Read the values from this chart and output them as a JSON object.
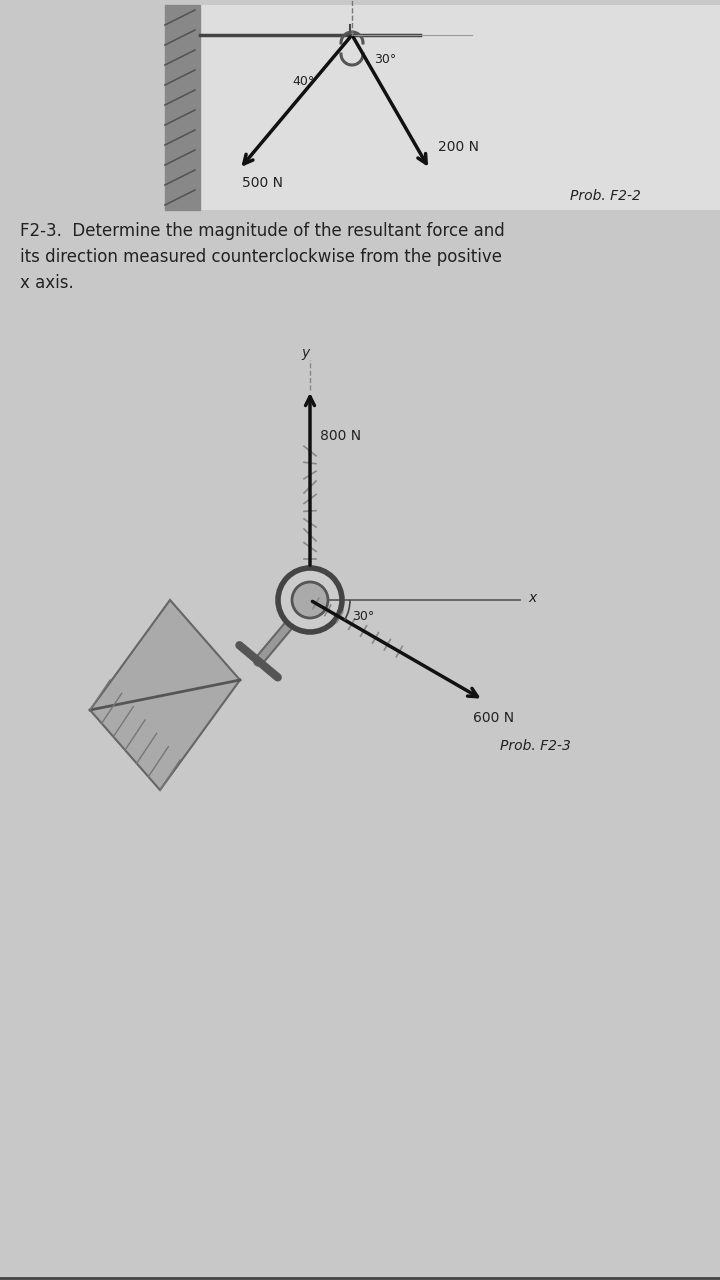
{
  "bg_color": "#c8c8c8",
  "page_bg": "#d4d4d4",
  "diagram_bg": "#e0e0e0",
  "text_color": "#1a1a1a",
  "line_color": "#222222",
  "wall_color": "#888888",
  "font_size_body": 12,
  "font_size_label": 10,
  "font_size_prob": 10,
  "prob_f2_2_label": "Prob. F2-2",
  "prob_f2_3_label": "Prob. F2-3",
  "problem_text_line1": "F2-3.  Determine the magnitude of the resultant force and",
  "problem_text_line2": "its direction measured counterclockwise from the positive",
  "problem_text_line3": "x axis.",
  "f1_mag": "200 N",
  "f1_angle_label": "30°",
  "f2_mag": "500 N",
  "f2_angle_label": "40°",
  "f3_mag": "800 N",
  "f4_mag": "600 N",
  "f4_angle_label": "30°",
  "x_label": "x",
  "y_label": "y"
}
